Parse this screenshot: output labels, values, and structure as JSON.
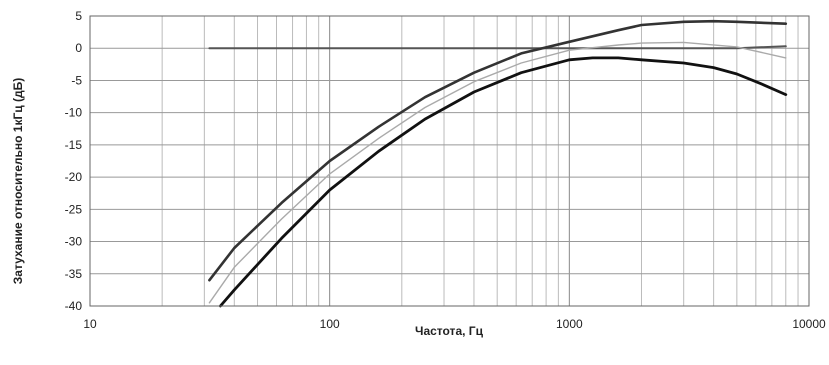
{
  "chart_data": {
    "type": "line",
    "title": "",
    "xlabel": "Частота, Гц",
    "ylabel": "Затухание относительно 1кГц (дБ)",
    "x_scale": "log",
    "xlim": [
      10,
      10000
    ],
    "ylim": [
      -40,
      5
    ],
    "x_ticks": [
      10,
      100,
      1000,
      10000
    ],
    "x_tick_labels": [
      "10",
      "100",
      "1000",
      "10000"
    ],
    "y_ticks": [
      5,
      0,
      -5,
      -10,
      -15,
      -20,
      -25,
      -30,
      -35,
      -40
    ],
    "y_tick_labels": [
      "5",
      "0",
      "-5",
      "-10",
      "-15",
      "-20",
      "-25",
      "-30",
      "-35",
      "-40"
    ],
    "grid": true,
    "series": [
      {
        "color": "#555555",
        "points": [
          [
            31.5,
            0
          ],
          [
            100,
            0
          ],
          [
            1000,
            0
          ],
          [
            3000,
            0
          ],
          [
            5000,
            0
          ],
          [
            8000,
            0.3
          ]
        ]
      },
      {
        "color": "#333333",
        "points": [
          [
            31.5,
            -36
          ],
          [
            40,
            -31
          ],
          [
            63,
            -24
          ],
          [
            100,
            -17.5
          ],
          [
            160,
            -12.2
          ],
          [
            250,
            -7.6
          ],
          [
            400,
            -3.8
          ],
          [
            630,
            -0.8
          ],
          [
            1000,
            1
          ],
          [
            1600,
            2.8
          ],
          [
            2000,
            3.6
          ],
          [
            3000,
            4.1
          ],
          [
            4000,
            4.2
          ],
          [
            5000,
            4.1
          ],
          [
            8000,
            3.8
          ]
        ]
      },
      {
        "color": "#aaaaaa",
        "points": [
          [
            31.5,
            -39.5
          ],
          [
            40,
            -34
          ],
          [
            63,
            -26.5
          ],
          [
            100,
            -19.5
          ],
          [
            160,
            -14
          ],
          [
            250,
            -9.2
          ],
          [
            400,
            -5.2
          ],
          [
            630,
            -2.3
          ],
          [
            1000,
            -0.3
          ],
          [
            1600,
            0.5
          ],
          [
            2000,
            0.8
          ],
          [
            3000,
            0.9
          ],
          [
            5000,
            0.2
          ],
          [
            8000,
            -1.5
          ]
        ]
      },
      {
        "color": "#111111",
        "points": [
          [
            35,
            -40
          ],
          [
            40,
            -37.5
          ],
          [
            63,
            -29.5
          ],
          [
            100,
            -22
          ],
          [
            160,
            -16
          ],
          [
            250,
            -11
          ],
          [
            400,
            -6.8
          ],
          [
            630,
            -3.8
          ],
          [
            1000,
            -1.8
          ],
          [
            1250,
            -1.5
          ],
          [
            1600,
            -1.5
          ],
          [
            2000,
            -1.8
          ],
          [
            3000,
            -2.3
          ],
          [
            4000,
            -3
          ],
          [
            5000,
            -4
          ],
          [
            6300,
            -5.5
          ],
          [
            8000,
            -7.2
          ]
        ]
      }
    ]
  }
}
